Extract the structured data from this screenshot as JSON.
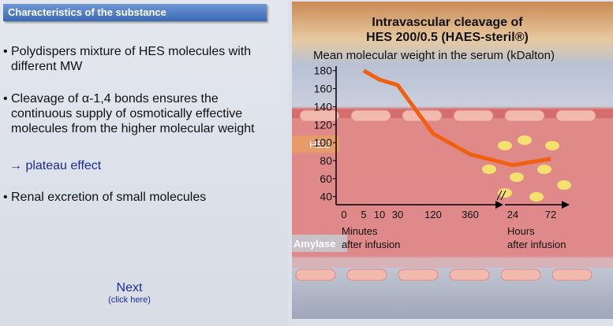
{
  "header": {
    "title": "Characteristics of the substance"
  },
  "bullets": [
    "Polydispers mixture of HES molecules with different MW",
    "Cleavage of α-1,4 bonds ensures the continuous supply of osmotically effective molecules from the higher molecular weight",
    "Renal excretion of small molecules"
  ],
  "plateau": "→ plateau effect",
  "next": {
    "label": "Next",
    "hint": "(click here)"
  },
  "chart_data": {
    "type": "line",
    "title": [
      "Intravascular cleavage of",
      "HES 200/0.5 (HAES-steril®)"
    ],
    "subtitle": "Mean molecular weight in the serum (kDalton)",
    "categories": [
      "0",
      "5",
      "10",
      "30",
      "120",
      "360",
      "24",
      "72"
    ],
    "x_groups": [
      {
        "name": "Minutes",
        "note": "after infusion"
      },
      {
        "name": "Hours",
        "note": "after infusion"
      }
    ],
    "series": [
      {
        "name": "HES",
        "color": "#f06010",
        "values": [
          null,
          180,
          170,
          164,
          110,
          87,
          75,
          82
        ]
      }
    ],
    "ylim": [
      31,
      185
    ],
    "yticks": [
      40,
      60,
      80,
      100,
      120,
      140,
      160,
      180
    ],
    "annotations": [
      "HES",
      "Amylase"
    ]
  }
}
